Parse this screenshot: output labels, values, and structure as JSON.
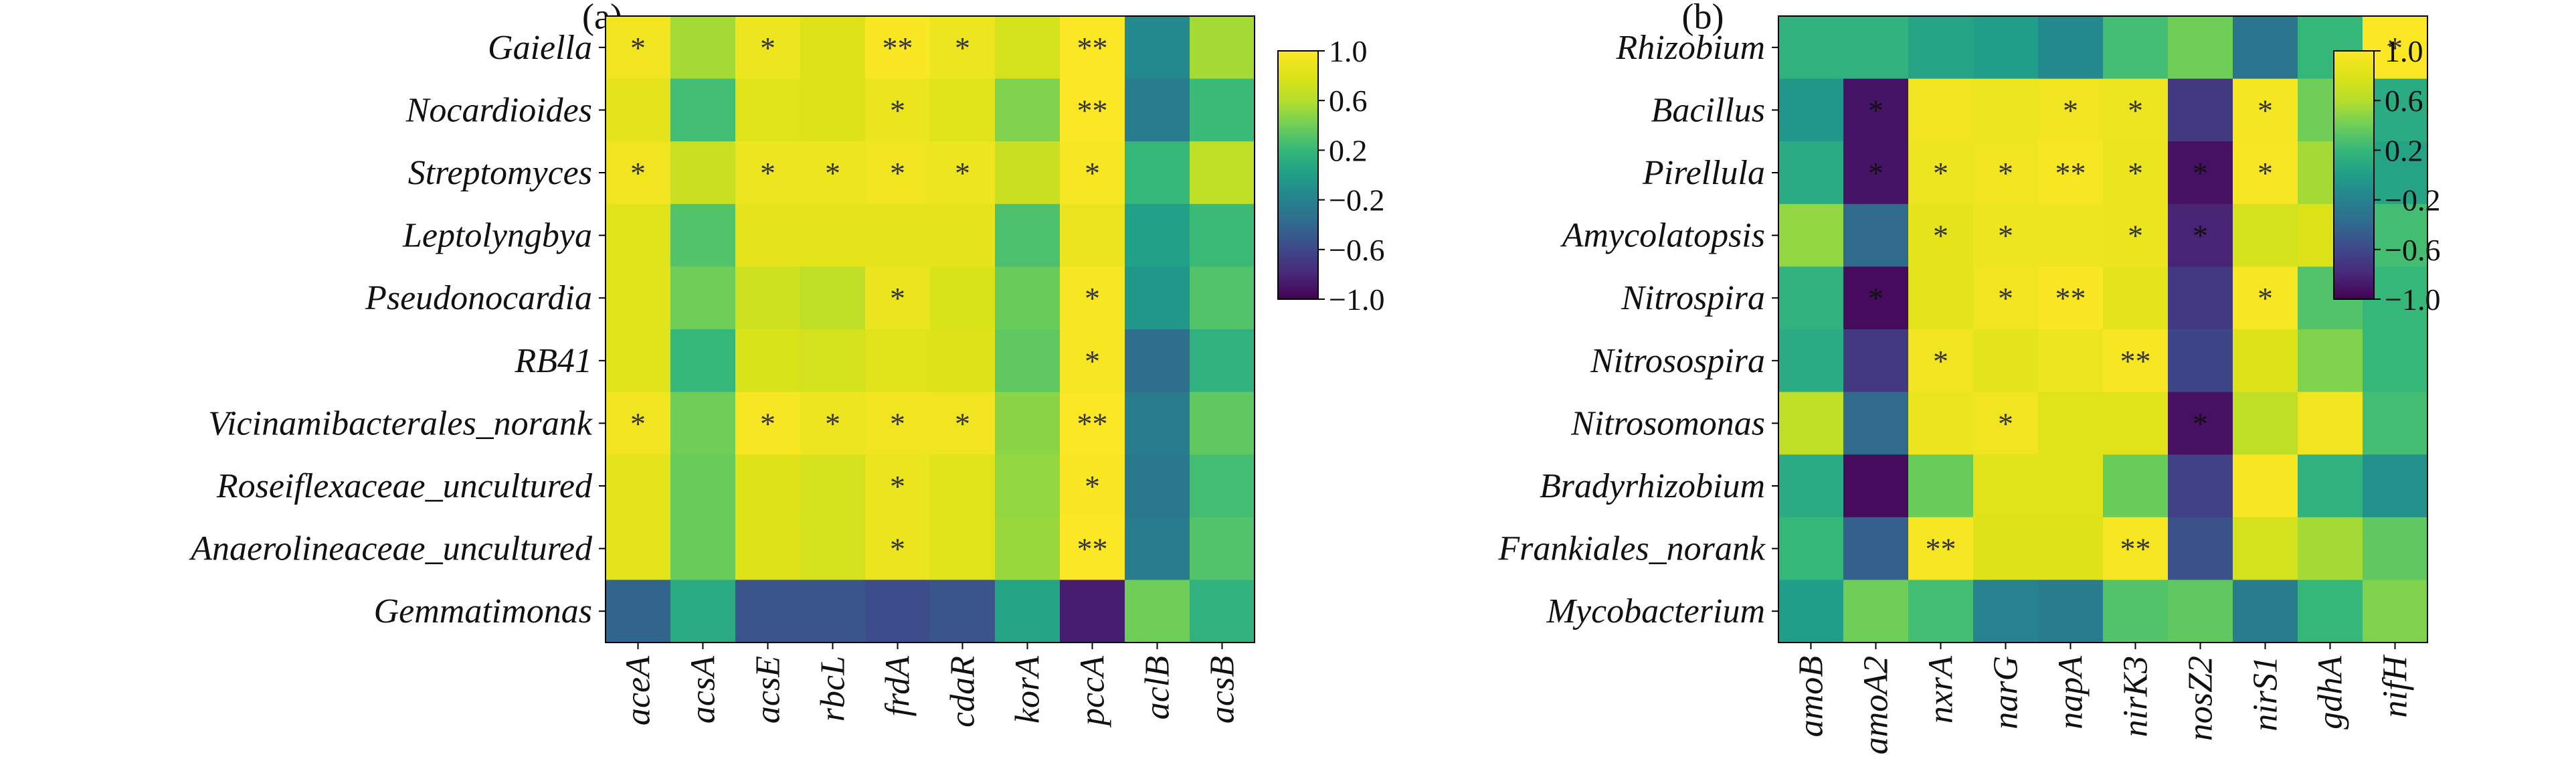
{
  "colorbar_ticks": [
    "1.0",
    "0.6",
    "0.2",
    "−0.2",
    "−0.6",
    "−1.0"
  ],
  "colormap": "viridis",
  "value_range": [
    -1.0,
    1.0
  ],
  "chart_data": [
    {
      "type": "heatmap",
      "panel_label": "(a)",
      "rows": [
        "Gaiella",
        "Nocardioides",
        "Streptomyces",
        "Leptolyngbya",
        "Pseudonocardia",
        "RB41",
        "Vicinamibacterales_norank",
        "Roseiflexaceae_uncultured",
        "Anaerolineaceae_uncultured",
        "Gemmatimonas"
      ],
      "columns": [
        "aceA",
        "acsA",
        "acsE",
        "rbcL",
        "frdA",
        "cdaR",
        "korA",
        "pccA",
        "aclB",
        "acsB"
      ],
      "values": [
        [
          0.92,
          0.55,
          0.9,
          0.8,
          0.98,
          0.9,
          0.75,
          0.99,
          -0.15,
          0.55
        ],
        [
          0.85,
          0.25,
          0.82,
          0.8,
          0.88,
          0.82,
          0.45,
          0.99,
          -0.25,
          0.22
        ],
        [
          0.92,
          0.7,
          0.9,
          0.9,
          0.92,
          0.9,
          0.7,
          0.96,
          0.2,
          0.65
        ],
        [
          0.82,
          0.3,
          0.85,
          0.85,
          0.85,
          0.85,
          0.28,
          0.88,
          0.02,
          0.22
        ],
        [
          0.82,
          0.4,
          0.72,
          0.65,
          0.88,
          0.78,
          0.38,
          0.96,
          -0.05,
          0.3
        ],
        [
          0.82,
          0.2,
          0.78,
          0.75,
          0.82,
          0.8,
          0.35,
          0.96,
          -0.35,
          0.15
        ],
        [
          0.92,
          0.4,
          0.96,
          0.9,
          0.92,
          0.92,
          0.48,
          0.99,
          -0.25,
          0.35
        ],
        [
          0.84,
          0.38,
          0.8,
          0.75,
          0.88,
          0.82,
          0.5,
          0.98,
          -0.28,
          0.25
        ],
        [
          0.84,
          0.38,
          0.8,
          0.75,
          0.88,
          0.82,
          0.52,
          0.99,
          -0.25,
          0.3
        ],
        [
          -0.42,
          0.1,
          -0.52,
          -0.52,
          -0.58,
          -0.52,
          0.05,
          -0.85,
          0.4,
          0.15
        ]
      ],
      "stars": [
        [
          "*",
          "",
          "*",
          "",
          "**",
          "*",
          "",
          "**",
          "",
          ""
        ],
        [
          "",
          "",
          "",
          "",
          "*",
          "",
          "",
          "**",
          "",
          ""
        ],
        [
          "*",
          "",
          "*",
          "*",
          "*",
          "*",
          "",
          "*",
          "",
          ""
        ],
        [
          "",
          "",
          "",
          "",
          "",
          "",
          "",
          "",
          "",
          ""
        ],
        [
          "",
          "",
          "",
          "",
          "*",
          "",
          "",
          "*",
          "",
          ""
        ],
        [
          "",
          "",
          "",
          "",
          "",
          "",
          "",
          "*",
          "",
          ""
        ],
        [
          "*",
          "",
          "*",
          "*",
          "*",
          "*",
          "",
          "**",
          "",
          ""
        ],
        [
          "",
          "",
          "",
          "",
          "*",
          "",
          "",
          "*",
          "",
          ""
        ],
        [
          "",
          "",
          "",
          "",
          "*",
          "",
          "",
          "**",
          "",
          ""
        ],
        [
          "",
          "",
          "",
          "",
          "",
          "",
          "",
          "",
          "",
          ""
        ]
      ]
    },
    {
      "type": "heatmap",
      "panel_label": "(b)",
      "rows": [
        "Rhizobium",
        "Bacillus",
        "Pirellula",
        "Amycolatopsis",
        "Nitrospira",
        "Nitrosospira",
        "Nitrosomonas",
        "Bradyrhizobium",
        "Frankiales_norank",
        "Mycobacterium"
      ],
      "columns": [
        "amoB",
        "amoA2",
        "nxrA",
        "narG",
        "napA",
        "nirK3",
        "nosZ2",
        "nirS1",
        "gdhA",
        "nifH"
      ],
      "values": [
        [
          0.15,
          0.15,
          0.05,
          0.0,
          -0.15,
          0.25,
          0.4,
          -0.3,
          0.2,
          0.99
        ],
        [
          -0.05,
          -0.9,
          0.92,
          0.9,
          0.92,
          0.9,
          -0.7,
          0.95,
          0.4,
          0.1
        ],
        [
          0.1,
          -0.9,
          0.9,
          0.92,
          0.96,
          0.88,
          -0.92,
          0.96,
          0.55,
          0.05
        ],
        [
          0.5,
          -0.38,
          0.85,
          0.9,
          0.9,
          0.88,
          -0.82,
          0.75,
          0.8,
          0.25
        ],
        [
          0.15,
          -0.95,
          0.85,
          0.92,
          0.98,
          0.85,
          -0.7,
          0.96,
          0.3,
          0.2
        ],
        [
          0.1,
          -0.7,
          0.92,
          0.84,
          0.9,
          0.96,
          -0.62,
          0.8,
          0.45,
          0.2
        ],
        [
          0.65,
          -0.38,
          0.88,
          0.92,
          0.82,
          0.82,
          -0.92,
          0.65,
          0.92,
          0.25
        ],
        [
          0.1,
          -0.95,
          0.38,
          0.82,
          0.82,
          0.38,
          -0.65,
          0.96,
          0.15,
          -0.1
        ],
        [
          0.2,
          -0.45,
          0.96,
          0.8,
          0.8,
          0.96,
          -0.55,
          0.75,
          0.55,
          0.35
        ],
        [
          0.0,
          0.4,
          0.25,
          -0.2,
          -0.25,
          0.3,
          0.35,
          -0.25,
          0.2,
          0.45
        ]
      ],
      "stars": [
        [
          "",
          "",
          "",
          "",
          "",
          "",
          "",
          "",
          "",
          "*"
        ],
        [
          "",
          "*",
          "",
          "",
          "*",
          "*",
          "",
          "*",
          "",
          ""
        ],
        [
          "",
          "*",
          "*",
          "*",
          "**",
          "*",
          "*",
          "*",
          "",
          ""
        ],
        [
          "",
          "",
          "*",
          "*",
          "",
          "*",
          "*",
          "",
          "",
          ""
        ],
        [
          "",
          "*",
          "",
          "*",
          "**",
          "",
          "",
          "*",
          "",
          ""
        ],
        [
          "",
          "",
          "*",
          "",
          "",
          "**",
          "",
          "",
          "",
          ""
        ],
        [
          "",
          "",
          "",
          "*",
          "",
          "",
          "*",
          "",
          "",
          ""
        ],
        [
          "",
          "",
          "",
          "",
          "",
          "",
          "",
          "",
          "",
          ""
        ],
        [
          "",
          "",
          "**",
          "",
          "",
          "**",
          "",
          "",
          "",
          ""
        ],
        [
          "",
          "",
          "",
          "",
          "",
          "",
          "",
          "",
          "",
          ""
        ]
      ]
    }
  ]
}
